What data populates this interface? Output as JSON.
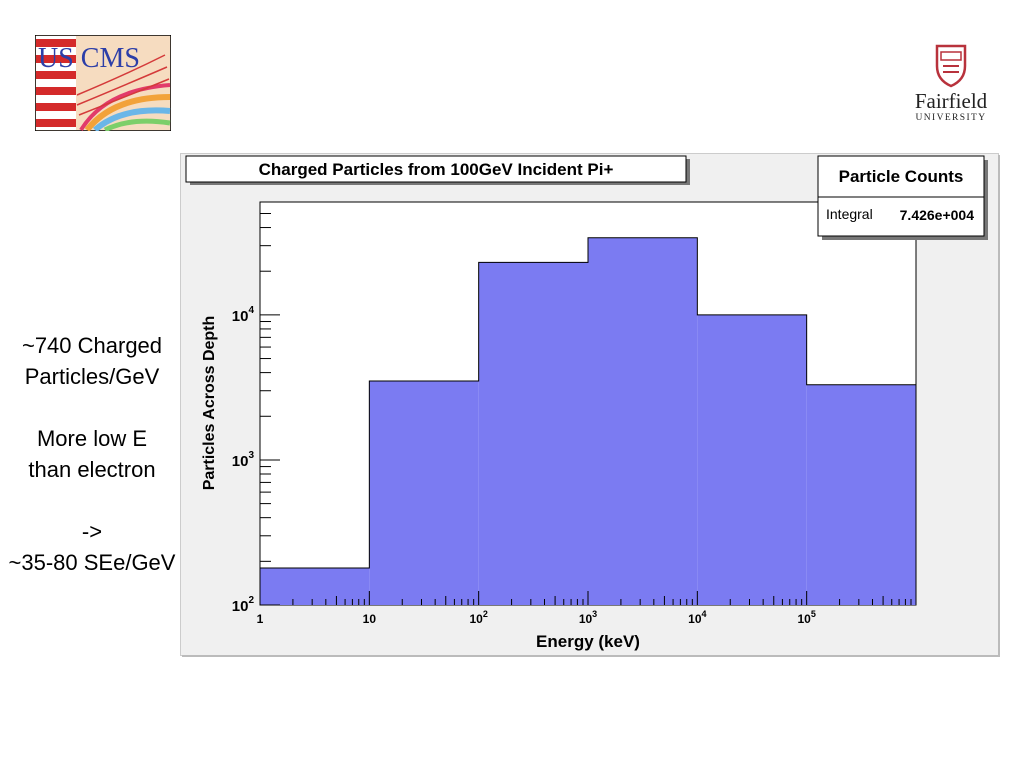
{
  "logos": {
    "uscms_text": "US CMS",
    "fairfield_name": "Fairfield",
    "fairfield_sub": "UNIVERSITY"
  },
  "side_text": {
    "lines": [
      "~740 Charged",
      "Particles/GeV",
      "",
      "More low E",
      "than electron",
      "",
      "->",
      "~35-80 SEe/GeV"
    ]
  },
  "colors": {
    "bar_fill": "#7b7bf2",
    "bar_stroke": "#000000",
    "canvas_bg": "#f0f0f0"
  },
  "stats_box": {
    "title": "Particle Counts",
    "label": "Integral",
    "value": "7.426e+004"
  },
  "chart_data": {
    "type": "bar",
    "title": "Charged Particles from 100GeV Incident Pi+",
    "xlabel": "Energy (keV)",
    "ylabel": "Particles Across Depth",
    "x_scale": "log",
    "y_scale": "log",
    "xlim": [
      1,
      1000000
    ],
    "ylim": [
      100,
      60000
    ],
    "grid": false,
    "legend": "top-right",
    "bins": [
      {
        "low": 1,
        "high": 10,
        "value": 180
      },
      {
        "low": 10,
        "high": 100,
        "value": 3500
      },
      {
        "low": 100,
        "high": 1000,
        "value": 23000
      },
      {
        "low": 1000,
        "high": 10000,
        "value": 34000
      },
      {
        "low": 10000,
        "high": 100000,
        "value": 10000
      },
      {
        "low": 100000,
        "high": 1000000,
        "value": 3300
      }
    ],
    "x_ticks": [
      {
        "value": 1,
        "base": "1",
        "exp": ""
      },
      {
        "value": 10,
        "base": "10",
        "exp": ""
      },
      {
        "value": 100,
        "base": "10",
        "exp": "2"
      },
      {
        "value": 1000,
        "base": "10",
        "exp": "3"
      },
      {
        "value": 10000,
        "base": "10",
        "exp": "4"
      },
      {
        "value": 100000,
        "base": "10",
        "exp": "5"
      }
    ],
    "y_ticks": [
      {
        "value": 100,
        "base": "10",
        "exp": "2"
      },
      {
        "value": 1000,
        "base": "10",
        "exp": "3"
      },
      {
        "value": 10000,
        "base": "10",
        "exp": "4"
      }
    ]
  }
}
